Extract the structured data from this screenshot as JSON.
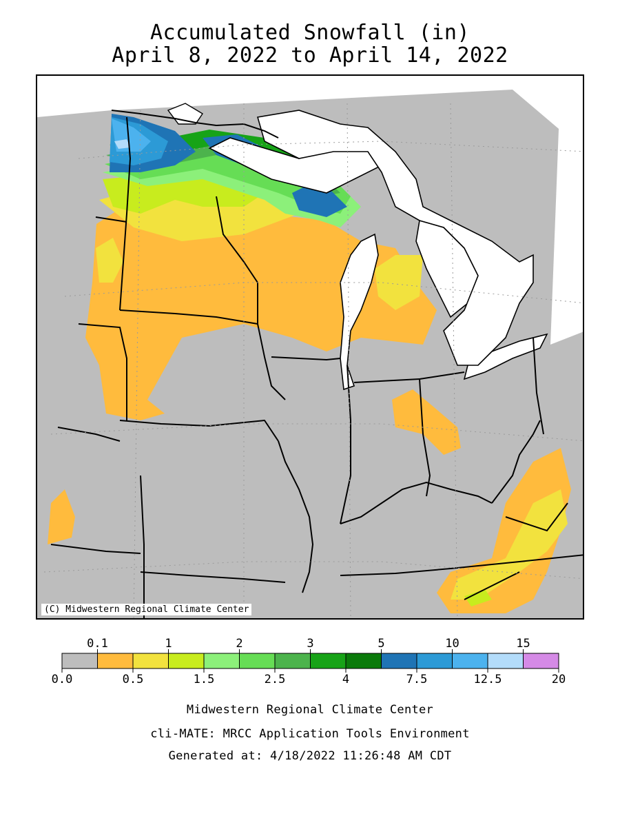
{
  "title": {
    "line1": "Accumulated Snowfall (in)",
    "line2": "April 8, 2022 to April 14, 2022"
  },
  "map": {
    "credit": "(C) Midwestern Regional Climate Center",
    "colors": {
      "none": "#bdbdbd",
      "lake": "#ffffff",
      "orange": "#ffbb3d",
      "yellow": "#f2e23e",
      "yellowgreen": "#c8ec1e",
      "lightgreen": "#8cf07a",
      "green": "#5cd65c",
      "midgreen": "#4cb34c",
      "darkgreen": "#17a317",
      "deepgreen": "#0a7a0a",
      "blue": "#1f74b5",
      "midblue": "#2c9ad6",
      "skyblue": "#4cb2ee",
      "paleblue": "#b3dcfa"
    }
  },
  "legend": {
    "upper_ticks": [
      "0.1",
      "1",
      "2",
      "3",
      "5",
      "10",
      "15"
    ],
    "lower_ticks": [
      "0.0",
      "0.5",
      "1.5",
      "2.5",
      "4",
      "7.5",
      "12.5",
      "20"
    ],
    "bins": [
      "#bdbdbd",
      "#ffbb3d",
      "#f2e23e",
      "#c8ec1e",
      "#8cf07a",
      "#66dd55",
      "#4cb34c",
      "#17a317",
      "#0a7a0a",
      "#1f74b5",
      "#2c9ad6",
      "#4cb2ee",
      "#b3dcfa",
      "#d58ae6"
    ]
  },
  "footer": {
    "line1": "Midwestern Regional Climate Center",
    "line2": "cli-MATE: MRCC Application Tools Environment",
    "line3": "Generated at: 4/18/2022 11:26:48 AM CDT"
  }
}
